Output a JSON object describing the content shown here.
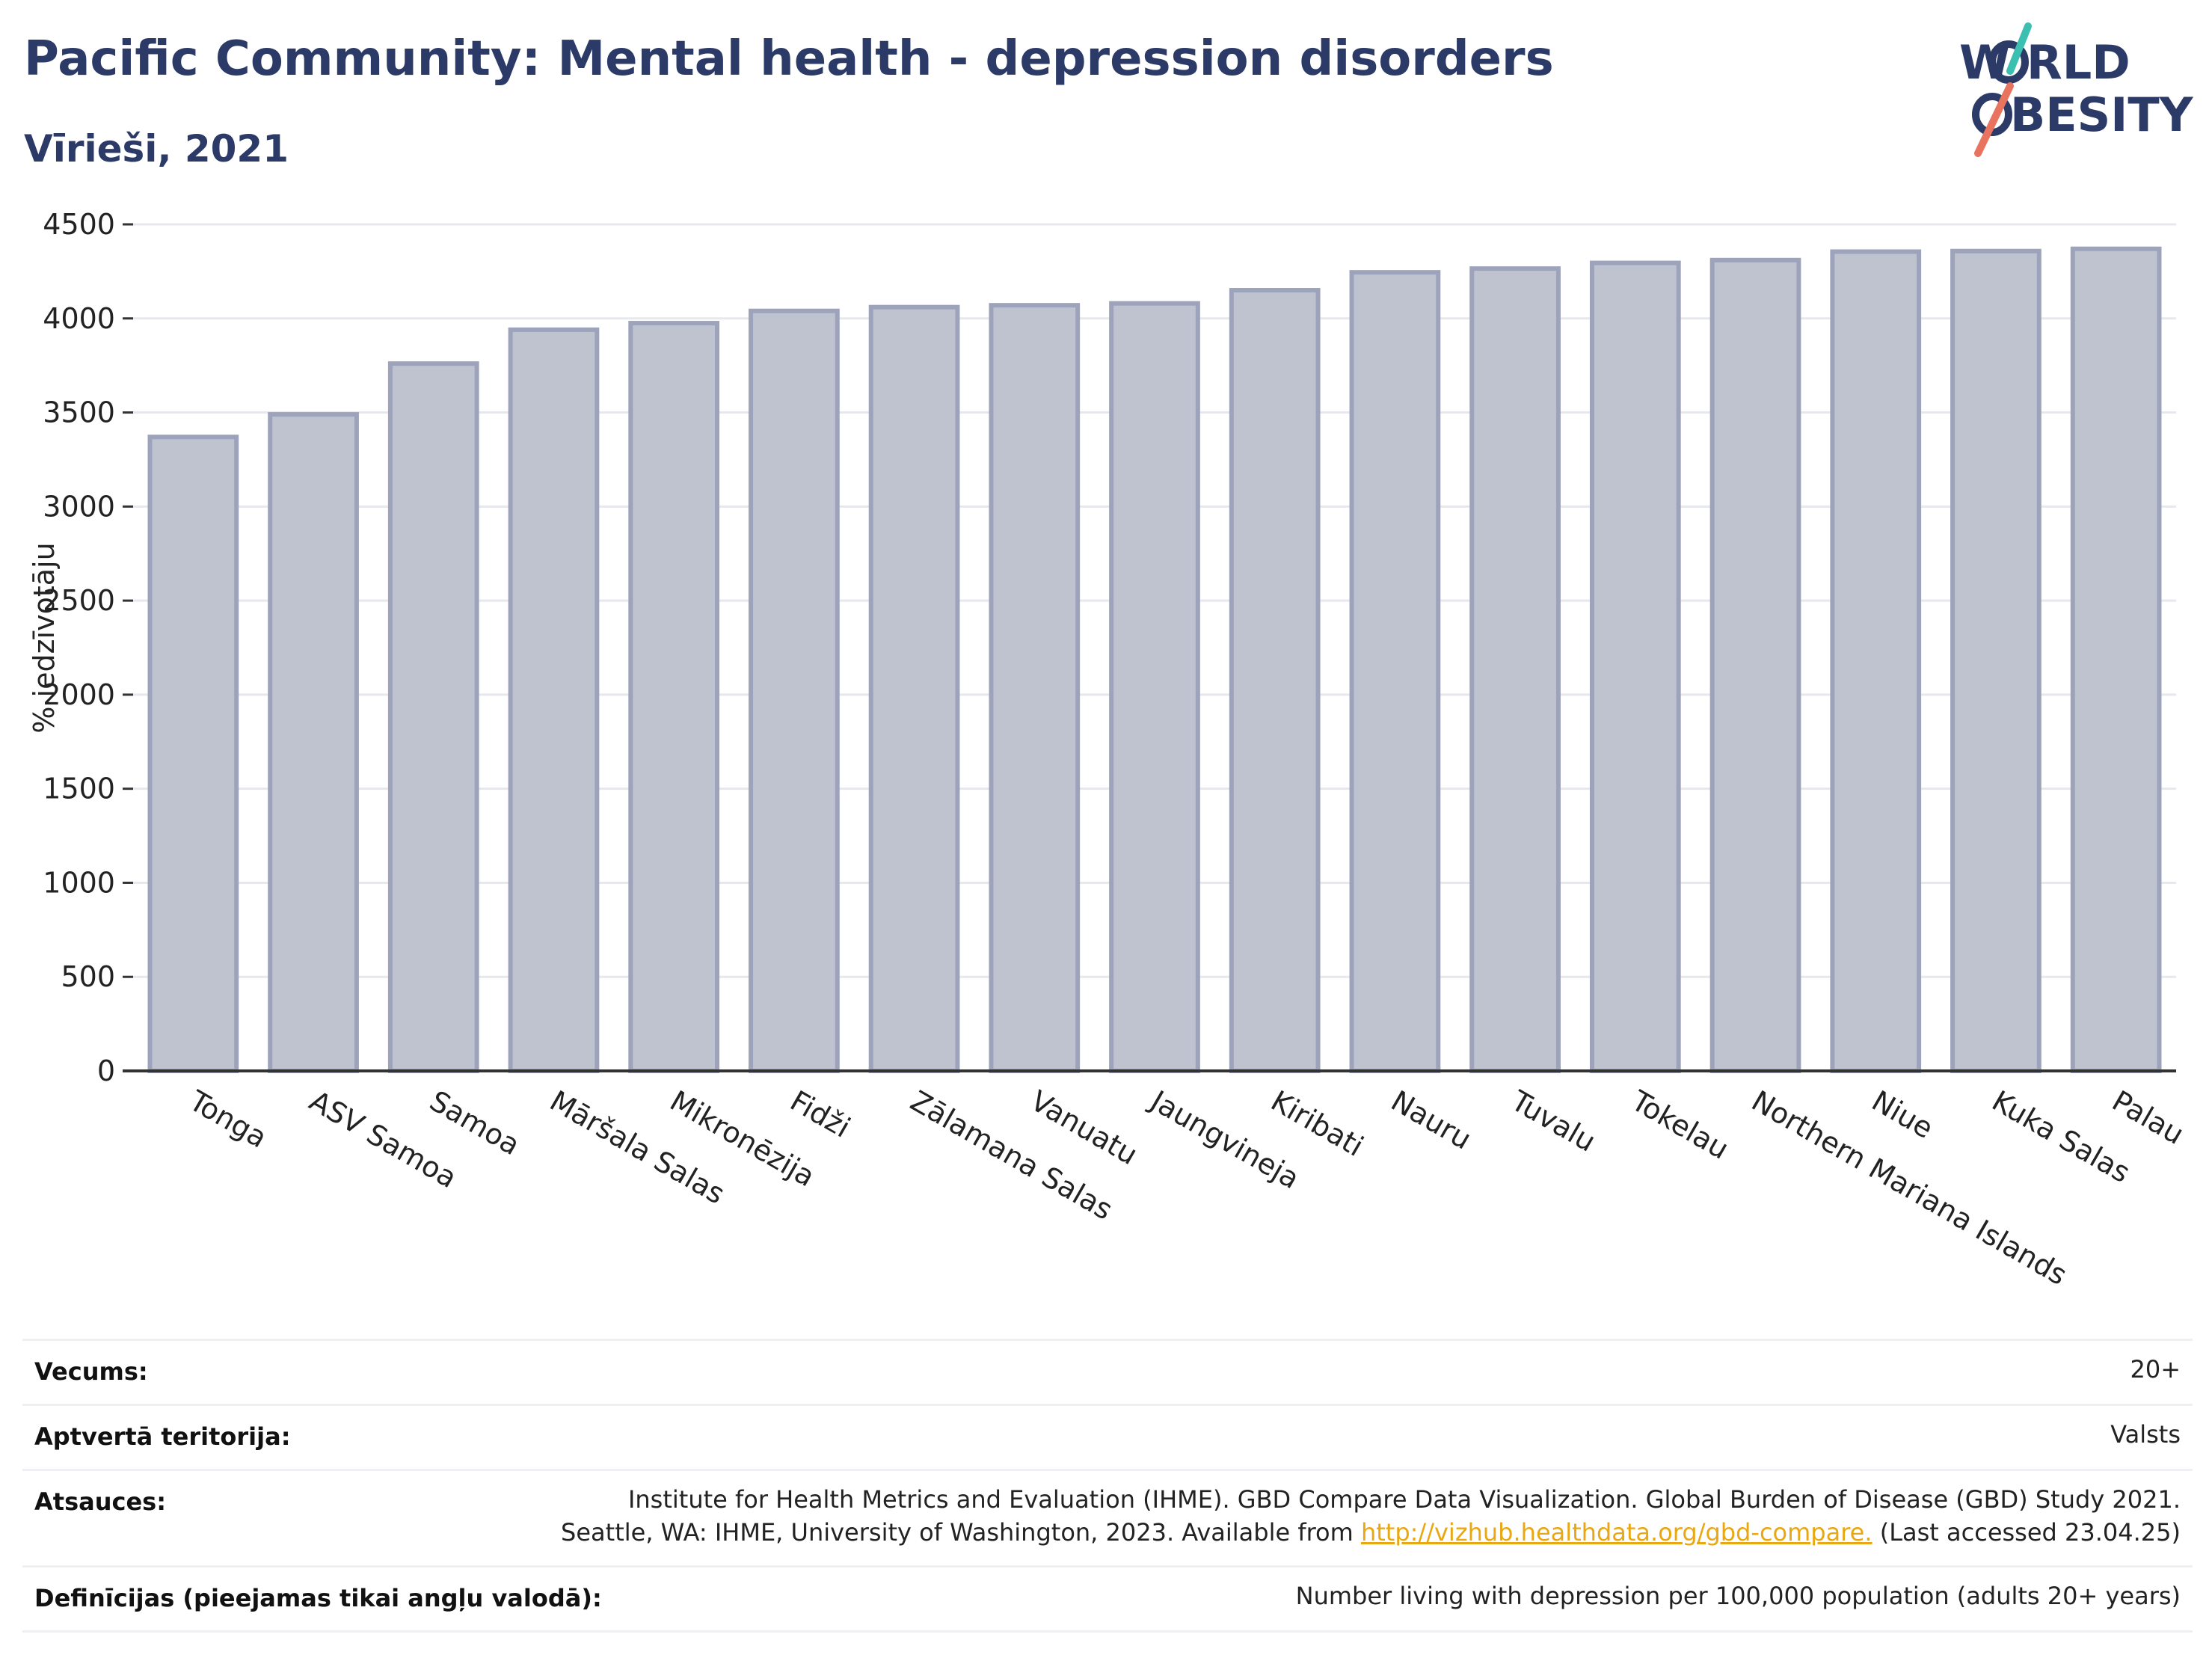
{
  "header": {
    "title": "Pacific Community: Mental health - depression disorders",
    "subtitle": "Vīrieši, 2021"
  },
  "logo": {
    "line1": "W RLD",
    "line2": "BESITY",
    "icon": "world-obesity-logo"
  },
  "colors": {
    "bar_fill": "#bfc3d0",
    "bar_stroke": "#9da3ba",
    "title": "#2b3a67",
    "grid": "#e6e8ee",
    "link": "#e9a712",
    "logo_teal": "#3bbfb0",
    "logo_coral": "#e8735f"
  },
  "chart_data": {
    "type": "bar",
    "title": "Pacific Community: Mental health - depression disorders",
    "subtitle": "Vīrieši, 2021",
    "ylabel": "% iedzīvotāju",
    "xlabel": "",
    "ylim": [
      0,
      4500
    ],
    "yticks": [
      0,
      500,
      1000,
      1500,
      2000,
      2500,
      3000,
      3500,
      4000,
      4500
    ],
    "grid": true,
    "categories": [
      "Tonga",
      "ASV Samoa",
      "Samoa",
      "Māršala Salas",
      "Mikronēzija",
      "Fidži",
      "Zālamana Salas",
      "Vanuatu",
      "Jaungvineja",
      "Kiribati",
      "Nauru",
      "Tuvalu",
      "Tokelau",
      "Northern Mariana Islands",
      "Niue",
      "Kuka Salas",
      "Palau"
    ],
    "values": [
      3370,
      3490,
      3760,
      3940,
      3975,
      4040,
      4060,
      4070,
      4080,
      4150,
      4245,
      4265,
      4295,
      4310,
      4355,
      4358,
      4370
    ]
  },
  "meta": {
    "rows": [
      {
        "label": "Vecums:",
        "value": [
          "20+"
        ]
      },
      {
        "label": "Aptvertā teritorija:",
        "value": [
          "Valsts"
        ]
      },
      {
        "label": "Atsauces:",
        "value": [
          "Institute for Health Metrics and Evaluation (IHME). GBD Compare Data Visualization. Global Burden of Disease (GBD) Study 2021.",
          "Seattle, WA: IHME, University of Washington, 2023. Available from "
        ],
        "link": "http://vizhub.healthdata.org/gbd-compare.",
        "after_link": " (Last accessed 23.04.25)"
      },
      {
        "label": "Definīcijas (pieejamas tikai angļu valodā):",
        "value": [
          "Number living with depression per 100,000 population (adults 20+ years)"
        ]
      }
    ]
  }
}
